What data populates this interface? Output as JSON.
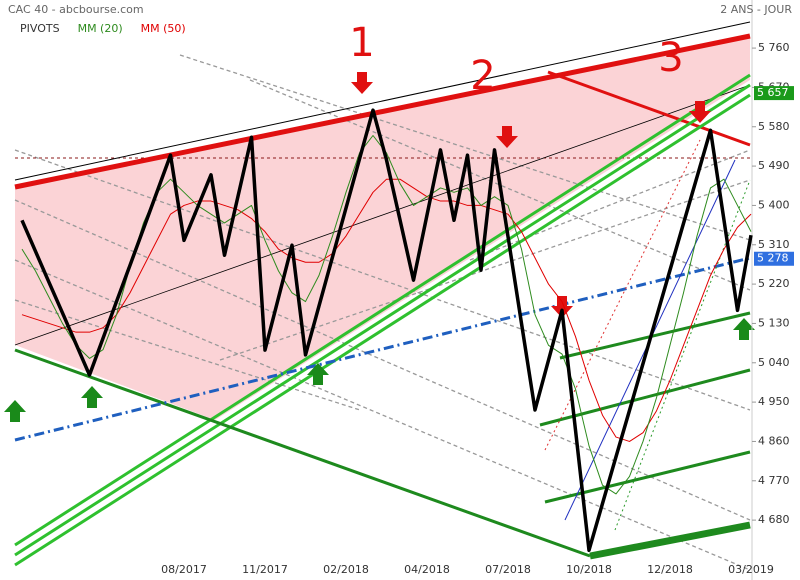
{
  "chart_data": {
    "type": "line",
    "title": "CAC 40 - abcbourse.com",
    "subtitle": "2 ANS - JOUR",
    "categories": [
      null,
      null,
      null,
      null,
      null,
      null,
      null,
      null,
      null,
      null,
      null,
      null,
      "08/2017",
      null,
      null,
      null,
      null,
      null,
      "11/2017",
      null,
      null,
      null,
      null,
      null,
      "02/2018",
      null,
      null,
      null,
      null,
      null,
      "04/2018",
      null,
      null,
      null,
      null,
      null,
      "07/2018",
      null,
      null,
      null,
      null,
      null,
      "10/2018",
      null,
      null,
      null,
      null,
      null,
      "12/2018",
      null,
      null,
      null,
      null,
      null,
      "03/2019"
    ],
    "series": [
      {
        "name": "PIVOTS",
        "color": "#000000",
        "values": [
          5366,
          5295,
          5224,
          5154,
          5083,
          5012,
          5096,
          5180,
          5263,
          5347,
          5431,
          5515,
          5320,
          5395,
          5470,
          5286,
          5421,
          5556,
          5069,
          5189,
          5309,
          5058,
          5170,
          5282,
          5394,
          5506,
          5618,
          5504,
          5367,
          5229,
          5378,
          5527,
          5366,
          5515,
          5252,
          5527,
          5329,
          5130,
          4932,
          5046,
          5160,
          4886,
          4611,
          4718,
          4825,
          4931,
          5038,
          5145,
          5252,
          5359,
          5465,
          5572,
          5366,
          5160,
          5332
        ]
      },
      {
        "name": "MM (20)",
        "color": "#2e8b1e",
        "values": [
          5300,
          5250,
          5190,
          5130,
          5080,
          5050,
          5070,
          5150,
          5260,
          5360,
          5430,
          5460,
          5430,
          5400,
          5380,
          5360,
          5380,
          5400,
          5320,
          5250,
          5200,
          5180,
          5240,
          5330,
          5430,
          5520,
          5560,
          5520,
          5450,
          5400,
          5420,
          5440,
          5430,
          5440,
          5400,
          5420,
          5400,
          5300,
          5150,
          5080,
          5060,
          4980,
          4850,
          4760,
          4740,
          4780,
          4860,
          4960,
          5080,
          5200,
          5330,
          5440,
          5460,
          5400,
          5340
        ]
      },
      {
        "name": "MM (50)",
        "color": "#e00000",
        "values": [
          5150,
          5140,
          5130,
          5120,
          5110,
          5110,
          5120,
          5150,
          5200,
          5260,
          5320,
          5380,
          5400,
          5410,
          5410,
          5400,
          5390,
          5370,
          5340,
          5300,
          5280,
          5270,
          5270,
          5290,
          5330,
          5380,
          5430,
          5460,
          5460,
          5440,
          5420,
          5410,
          5410,
          5400,
          5400,
          5390,
          5380,
          5340,
          5280,
          5220,
          5180,
          5100,
          5000,
          4920,
          4870,
          4860,
          4880,
          4930,
          5000,
          5080,
          5160,
          5240,
          5300,
          5350,
          5380
        ]
      }
    ],
    "ylim": [
      4543,
      5870
    ],
    "yticks": [
      {
        "value": 4680,
        "label": "4 680"
      },
      {
        "value": 4770,
        "label": "4 770"
      },
      {
        "value": 4860,
        "label": "4 860"
      },
      {
        "value": 4950,
        "label": "4 950"
      },
      {
        "value": 5040,
        "label": "5 040"
      },
      {
        "value": 5130,
        "label": "5 130"
      },
      {
        "value": 5220,
        "label": "5 220"
      },
      {
        "value": 5310,
        "label": "5 310"
      },
      {
        "value": 5400,
        "label": "5 400"
      },
      {
        "value": 5490,
        "label": "5 490"
      },
      {
        "value": 5580,
        "label": "5 580"
      },
      {
        "value": 5670,
        "label": "5 670"
      },
      {
        "value": 5760,
        "label": "5 760"
      }
    ],
    "grid": false,
    "price_tags": [
      {
        "value": 5657,
        "label": "5 657",
        "color": "#1a9a1a"
      },
      {
        "value": 5278,
        "label": "5 278",
        "color": "#2f6fe0"
      }
    ],
    "annotations": [
      "1",
      "2",
      "3"
    ]
  }
}
